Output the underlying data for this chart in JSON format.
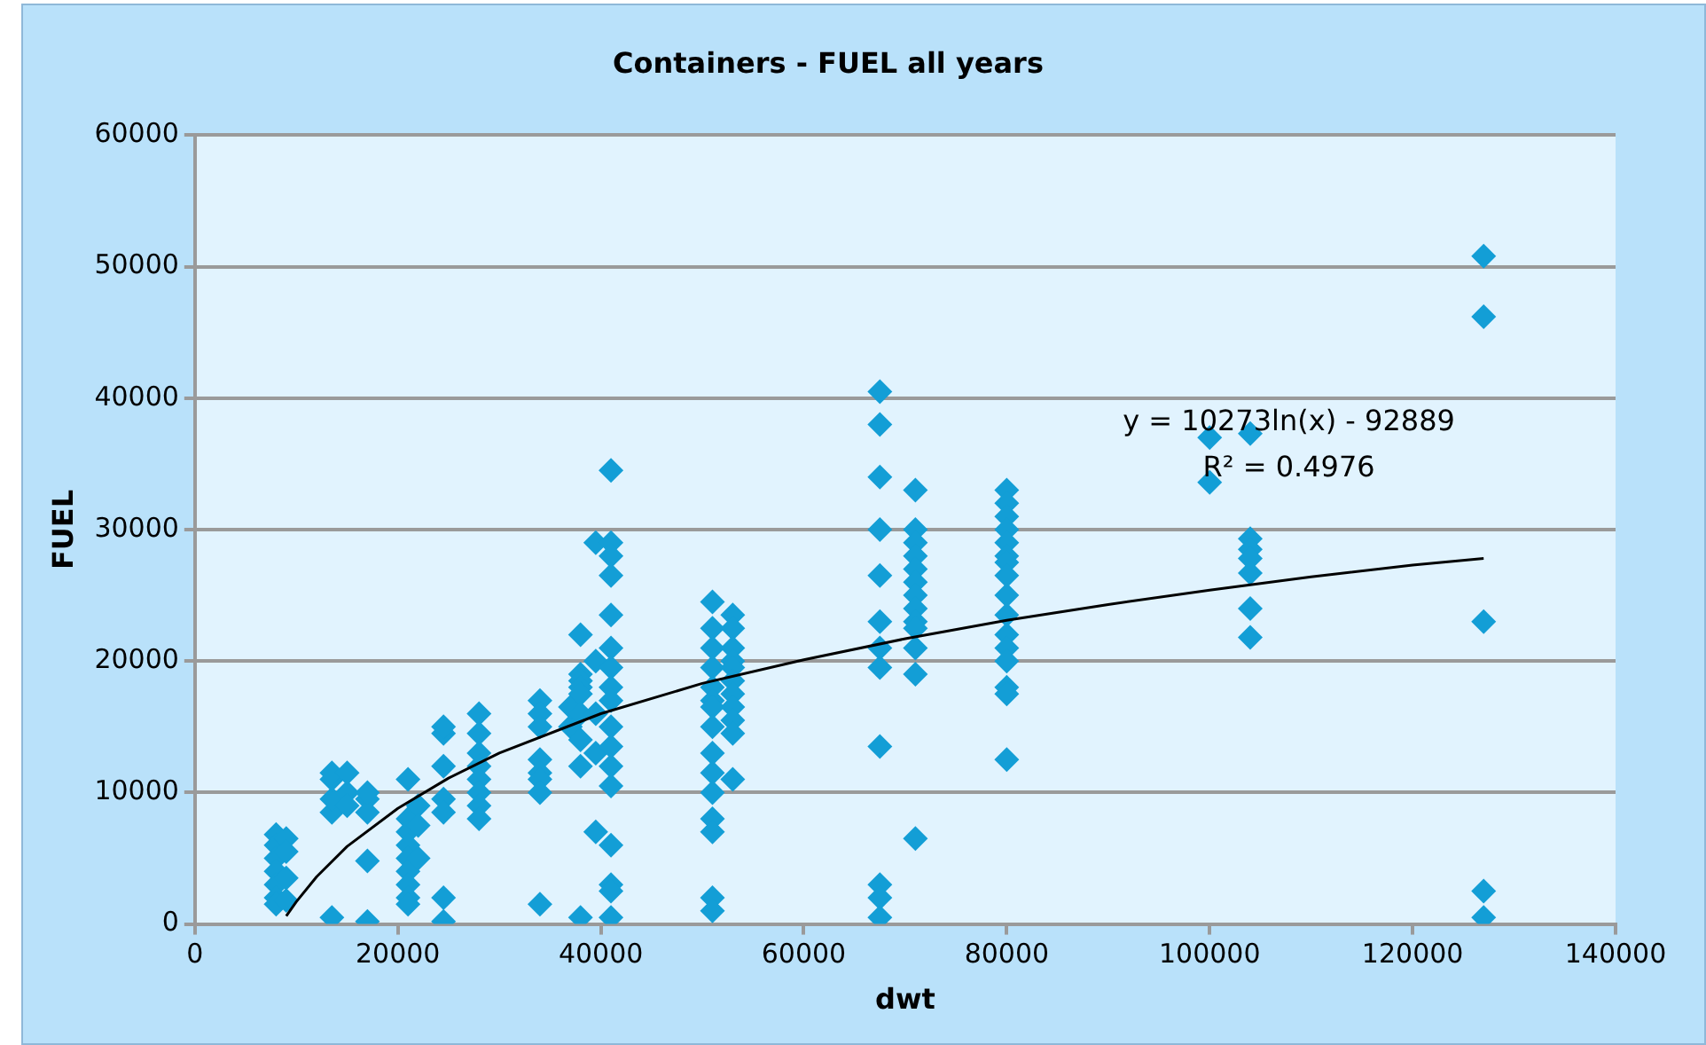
{
  "chart_data": {
    "type": "scatter",
    "title": "Containers - FUEL all years",
    "xlabel": "dwt",
    "ylabel": "FUEL",
    "xlim": [
      0,
      140000
    ],
    "xticks": [
      0,
      20000,
      40000,
      60000,
      80000,
      100000,
      120000,
      140000
    ],
    "ylim": [
      0,
      60000
    ],
    "yticks": [
      0,
      10000,
      20000,
      30000,
      40000,
      50000,
      60000
    ],
    "grid": "y",
    "marker": "diamond",
    "annotations": [
      "y = 10273ln(x) - 92889",
      "R² = 0.4976"
    ],
    "series": [
      {
        "color": "#139ed6",
        "x": [
          8000,
          8000,
          8000,
          8000,
          8000,
          8000,
          8000,
          9000,
          9000,
          9000,
          9000,
          13500,
          13500,
          13500,
          13500,
          13500,
          15000,
          15000,
          15000,
          17000,
          17000,
          17000,
          17000,
          17000,
          21000,
          21000,
          21000,
          21000,
          21000,
          21000,
          21000,
          21000,
          21000,
          22000,
          22000,
          22000,
          24500,
          24500,
          24500,
          24500,
          24500,
          24500,
          24500,
          28000,
          28000,
          28000,
          28000,
          28000,
          28000,
          28000,
          28000,
          34000,
          34000,
          34000,
          34000,
          34000,
          34000,
          34000,
          34000,
          37000,
          37000,
          38000,
          38000,
          38000,
          38000,
          38000,
          38000,
          38000,
          38000,
          38000,
          39500,
          39500,
          39500,
          39500,
          39500,
          41000,
          41000,
          41000,
          41000,
          41000,
          41000,
          41000,
          41000,
          41000,
          41000,
          41000,
          41000,
          41000,
          41000,
          41000,
          41000,
          41000,
          51000,
          51000,
          51000,
          51000,
          51000,
          51000,
          51000,
          51000,
          51000,
          51000,
          51000,
          51000,
          51000,
          51000,
          51000,
          53000,
          53000,
          53000,
          53000,
          53000,
          53000,
          53000,
          53000,
          53000,
          53000,
          53000,
          67500,
          67500,
          67500,
          67500,
          67500,
          67500,
          67500,
          67500,
          67500,
          67500,
          67500,
          67500,
          71000,
          71000,
          71000,
          71000,
          71000,
          71000,
          71000,
          71000,
          71000,
          71000,
          71000,
          71000,
          71000,
          80000,
          80000,
          80000,
          80000,
          80000,
          80000,
          80000,
          80000,
          80000,
          80000,
          80000,
          80000,
          80000,
          80000,
          80000,
          80000,
          100000,
          100000,
          104000,
          104000,
          104000,
          104000,
          104000,
          104000,
          104000,
          127000,
          127000,
          127000,
          127000,
          127000
        ],
        "values": [
          6800,
          6000,
          5000,
          4000,
          3000,
          2000,
          1500,
          6500,
          5500,
          3500,
          1800,
          8500,
          9500,
          11000,
          11500,
          500,
          10000,
          9000,
          11500,
          9500,
          8500,
          10000,
          4800,
          200,
          11000,
          8000,
          7000,
          6000,
          5000,
          4000,
          3000,
          2000,
          1500,
          9000,
          7500,
          5000,
          12000,
          9500,
          8500,
          2000,
          200,
          14500,
          15000,
          16000,
          14500,
          13000,
          12000,
          11000,
          10000,
          9000,
          8000,
          17000,
          16000,
          15000,
          12500,
          11500,
          11000,
          10000,
          1500,
          15000,
          16500,
          22000,
          19000,
          18500,
          18000,
          17500,
          16000,
          14000,
          12000,
          500,
          29000,
          20000,
          16000,
          13000,
          7000,
          34500,
          29000,
          28000,
          26500,
          23500,
          21000,
          19500,
          18000,
          17000,
          15000,
          13500,
          12000,
          10500,
          6000,
          3000,
          2500,
          500,
          24500,
          22500,
          21000,
          19500,
          18000,
          17000,
          16500,
          15000,
          13000,
          11500,
          10000,
          8000,
          7000,
          2000,
          1000,
          23500,
          22500,
          21000,
          20000,
          19500,
          18500,
          17500,
          16500,
          15500,
          14500,
          11000,
          40500,
          38000,
          34000,
          30000,
          26500,
          23000,
          21000,
          19500,
          13500,
          3000,
          2000,
          500,
          33000,
          30000,
          29000,
          28000,
          27000,
          26000,
          25000,
          24000,
          23000,
          22500,
          21000,
          19000,
          6500,
          33000,
          32000,
          31000,
          30000,
          29000,
          28000,
          27500,
          26500,
          25000,
          23500,
          22000,
          21000,
          20000,
          18000,
          17500,
          12500,
          37000,
          33600,
          37300,
          29300,
          28500,
          27800,
          26700,
          24000,
          21800,
          50800,
          46200,
          23000,
          2500,
          500
        ]
      },
      {
        "type": "line",
        "color": "#000000",
        "marker": "none",
        "line_style": "solid",
        "x": [
          9000,
          10000,
          12000,
          15000,
          20000,
          25000,
          30000,
          40000,
          50000,
          60000,
          70000,
          80000,
          90000,
          100000,
          110000,
          120000,
          127000
        ],
        "values": [
          600,
          1700,
          3600,
          5900,
          8800,
          11100,
          13000,
          16000,
          18300,
          20100,
          21700,
          23100,
          24300,
          25400,
          26400,
          27300,
          27800
        ]
      }
    ]
  }
}
